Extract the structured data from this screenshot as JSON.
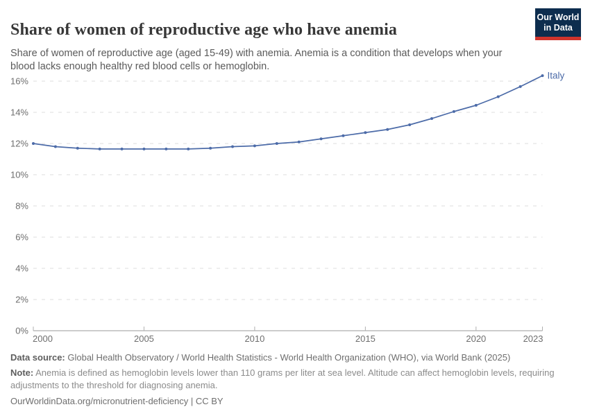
{
  "header": {
    "title": "Share of women of reproductive age who have anemia",
    "subtitle": "Share of women of reproductive age (aged 15-49) with anemia. Anemia is a condition that develops when your blood lacks enough healthy red blood cells or hemoglobin."
  },
  "logo": {
    "line1": "Our World",
    "line2": "in Data",
    "bg_color": "#0d2d4e",
    "accent_color": "#d0342c"
  },
  "chart_data": {
    "type": "line",
    "title": "Share of women of reproductive age who have anemia",
    "xlabel": "",
    "ylabel": "",
    "x": [
      2000,
      2001,
      2002,
      2003,
      2004,
      2005,
      2006,
      2007,
      2008,
      2009,
      2010,
      2011,
      2012,
      2013,
      2014,
      2015,
      2016,
      2017,
      2018,
      2019,
      2020,
      2021,
      2022,
      2023
    ],
    "series": [
      {
        "name": "Italy",
        "color": "#4c6ba8",
        "values": [
          12.0,
          11.8,
          11.7,
          11.65,
          11.65,
          11.65,
          11.65,
          11.65,
          11.7,
          11.8,
          11.85,
          12.0,
          12.1,
          12.3,
          12.5,
          12.7,
          12.9,
          13.2,
          13.6,
          14.05,
          14.45,
          15.0,
          15.65,
          16.35
        ]
      }
    ],
    "x_ticks": [
      2000,
      2005,
      2010,
      2015,
      2020,
      2023
    ],
    "y_ticks": [
      0,
      2,
      4,
      6,
      8,
      10,
      12,
      14,
      16
    ],
    "y_tick_suffix": "%",
    "xlim": [
      2000,
      2023
    ],
    "ylim": [
      0,
      16.5
    ],
    "grid": "dashed-horizontal",
    "legend_position": "end-of-line-label",
    "axis_color": "#9a9a9a",
    "grid_color": "#dedede",
    "tick_label_color": "#6e6e6e"
  },
  "footer": {
    "datasource_label": "Data source:",
    "datasource": " Global Health Observatory / World Health Statistics - World Health Organization (WHO), via World Bank (2025)",
    "note_label": "Note:",
    "note": " Anemia is defined as hemoglobin levels lower than 110 grams per liter at sea level. Altitude can affect hemoglobin levels, requiring adjustments to the threshold for diagnosing anemia.",
    "citation": "OurWorldinData.org/micronutrient-deficiency | CC BY"
  }
}
